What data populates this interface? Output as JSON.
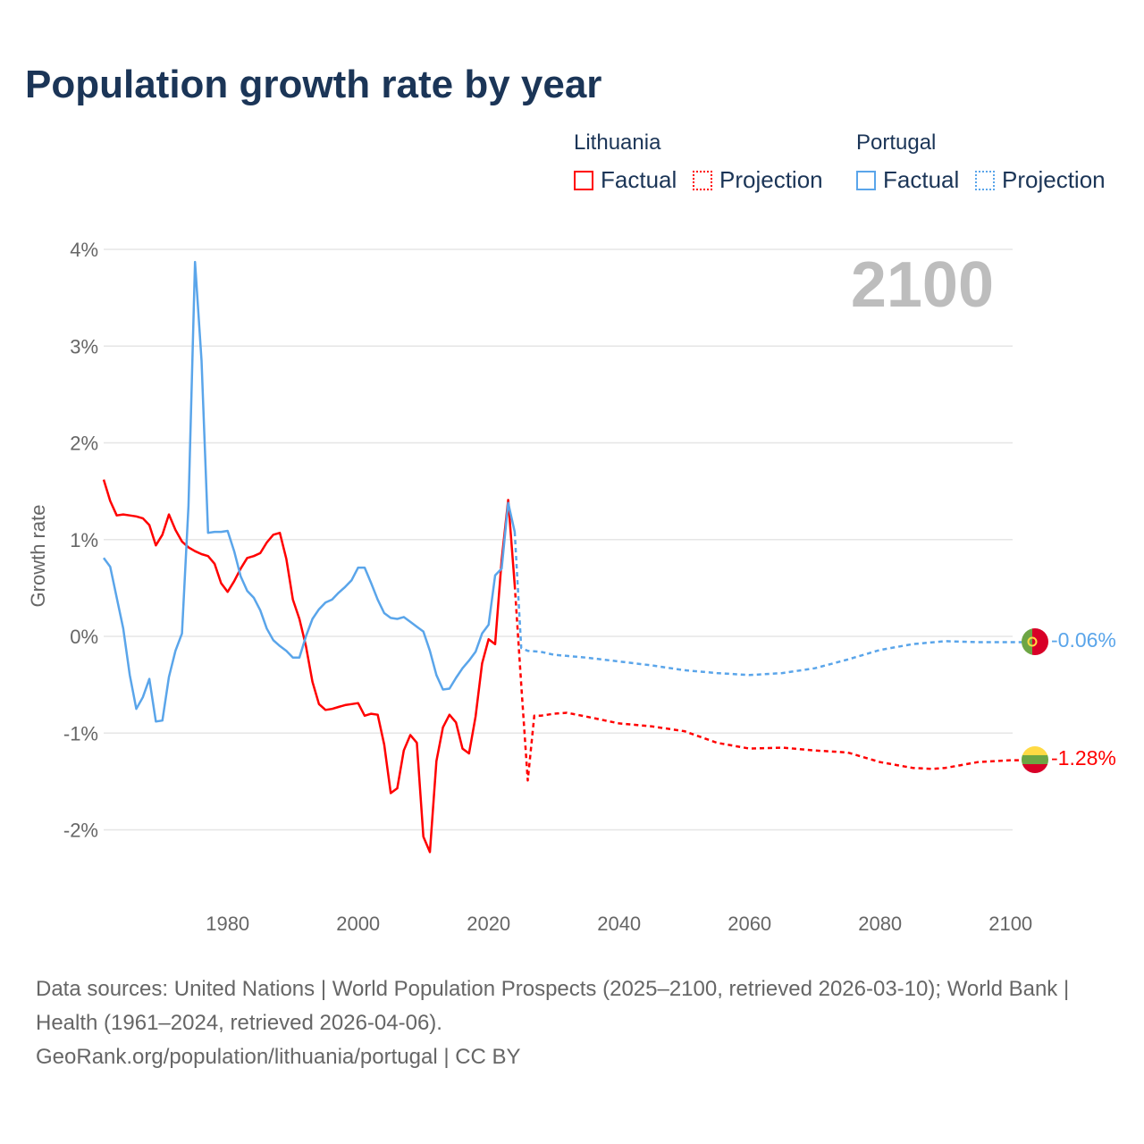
{
  "title": "Population growth rate by year",
  "legend": {
    "groups": [
      {
        "country": "Lithuania",
        "factual": "Factual",
        "projection": "Projection",
        "color": "#ff0000"
      },
      {
        "country": "Portugal",
        "factual": "Factual",
        "projection": "Projection",
        "color": "#5aa5ea"
      }
    ]
  },
  "year_label": "2100",
  "footer": {
    "sources": "Data sources: United Nations | World Population Prospects (2025–2100, retrieved 2026-03-10); World Bank | Health (1961–2024, retrieved 2026-04-06).",
    "link": "GeoRank.org/population/lithuania/portugal | CC BY"
  },
  "chart_data": {
    "type": "line",
    "title": "Population growth rate by year",
    "xlabel": "",
    "ylabel": "Growth rate",
    "xlim": [
      1961,
      2100
    ],
    "ylim": [
      -2.6,
      4.1
    ],
    "grid": true,
    "x_ticks": [
      {
        "v": 1980,
        "label": "1980"
      },
      {
        "v": 2000,
        "label": "2000"
      },
      {
        "v": 2020,
        "label": "2020"
      },
      {
        "v": 2040,
        "label": "2040"
      },
      {
        "v": 2060,
        "label": "2060"
      },
      {
        "v": 2080,
        "label": "2080"
      },
      {
        "v": 2100,
        "label": "2100"
      }
    ],
    "y_ticks": [
      {
        "v": 4,
        "label": "4%"
      },
      {
        "v": 3,
        "label": "3%"
      },
      {
        "v": 2,
        "label": "2%"
      },
      {
        "v": 1,
        "label": "1%"
      },
      {
        "v": 0,
        "label": "0%"
      },
      {
        "v": -1,
        "label": "-1%"
      },
      {
        "v": -2,
        "label": "-2%"
      }
    ],
    "series": [
      {
        "name": "Lithuania Factual",
        "color": "#ff0000",
        "dashed": false,
        "start": 1961,
        "values": [
          1.62,
          1.4,
          1.25,
          1.26,
          1.25,
          1.24,
          1.22,
          1.15,
          0.94,
          1.05,
          1.26,
          1.1,
          0.98,
          0.92,
          0.88,
          0.85,
          0.83,
          0.75,
          0.55,
          0.46,
          0.57,
          0.7,
          0.81,
          0.83,
          0.86,
          0.97,
          1.05,
          1.07,
          0.8,
          0.38,
          0.18,
          -0.1,
          -0.47,
          -0.7,
          -0.76,
          -0.75,
          -0.73,
          -0.71,
          -0.7,
          -0.69,
          -0.82,
          -0.8,
          -0.81,
          -1.12,
          -1.62,
          -1.57,
          -1.18,
          -1.02,
          -1.1,
          -2.07,
          -2.23,
          -1.29,
          -0.94,
          -0.81,
          -0.89,
          -1.16,
          -1.21,
          -0.83,
          -0.28,
          -0.03,
          -0.08,
          0.79,
          1.41,
          0.53
        ]
      },
      {
        "name": "Portugal Factual",
        "color": "#5aa5ea",
        "dashed": false,
        "start": 1961,
        "values": [
          0.81,
          0.72,
          0.4,
          0.08,
          -0.4,
          -0.75,
          -0.63,
          -0.44,
          -0.88,
          -0.87,
          -0.42,
          -0.15,
          0.03,
          1.35,
          3.87,
          2.85,
          1.07,
          1.08,
          1.08,
          1.09,
          0.88,
          0.62,
          0.47,
          0.4,
          0.27,
          0.08,
          -0.04,
          -0.1,
          -0.15,
          -0.22,
          -0.22,
          0.0,
          0.18,
          0.28,
          0.35,
          0.38,
          0.45,
          0.51,
          0.58,
          0.71,
          0.71,
          0.55,
          0.38,
          0.24,
          0.19,
          0.18,
          0.2,
          0.15,
          0.1,
          0.05,
          -0.15,
          -0.4,
          -0.55,
          -0.54,
          -0.43,
          -0.33,
          -0.25,
          -0.16,
          0.03,
          0.12,
          0.63,
          0.7,
          1.38,
          1.08
        ]
      },
      {
        "name": "Lithuania Projection",
        "color": "#ff0000",
        "dashed": true,
        "points": [
          [
            2024,
            0.53
          ],
          [
            2025,
            -0.5
          ],
          [
            2026,
            -1.49
          ],
          [
            2027,
            -0.82
          ],
          [
            2028,
            -0.82
          ],
          [
            2030,
            -0.8
          ],
          [
            2032,
            -0.79
          ],
          [
            2035,
            -0.83
          ],
          [
            2040,
            -0.9
          ],
          [
            2045,
            -0.93
          ],
          [
            2050,
            -0.98
          ],
          [
            2055,
            -1.1
          ],
          [
            2060,
            -1.16
          ],
          [
            2065,
            -1.15
          ],
          [
            2070,
            -1.18
          ],
          [
            2075,
            -1.2
          ],
          [
            2080,
            -1.3
          ],
          [
            2085,
            -1.36
          ],
          [
            2088,
            -1.37
          ],
          [
            2090,
            -1.36
          ],
          [
            2095,
            -1.3
          ],
          [
            2100,
            -1.28
          ]
        ],
        "end_label": "-1.28%"
      },
      {
        "name": "Portugal Projection",
        "color": "#5aa5ea",
        "dashed": true,
        "points": [
          [
            2024,
            1.08
          ],
          [
            2025,
            -0.12
          ],
          [
            2026,
            -0.15
          ],
          [
            2028,
            -0.16
          ],
          [
            2030,
            -0.19
          ],
          [
            2035,
            -0.22
          ],
          [
            2040,
            -0.26
          ],
          [
            2045,
            -0.3
          ],
          [
            2050,
            -0.35
          ],
          [
            2055,
            -0.38
          ],
          [
            2060,
            -0.4
          ],
          [
            2065,
            -0.38
          ],
          [
            2070,
            -0.33
          ],
          [
            2075,
            -0.24
          ],
          [
            2080,
            -0.14
          ],
          [
            2085,
            -0.08
          ],
          [
            2090,
            -0.05
          ],
          [
            2095,
            -0.06
          ],
          [
            2100,
            -0.06
          ]
        ],
        "end_label": "-0.06%"
      }
    ]
  }
}
